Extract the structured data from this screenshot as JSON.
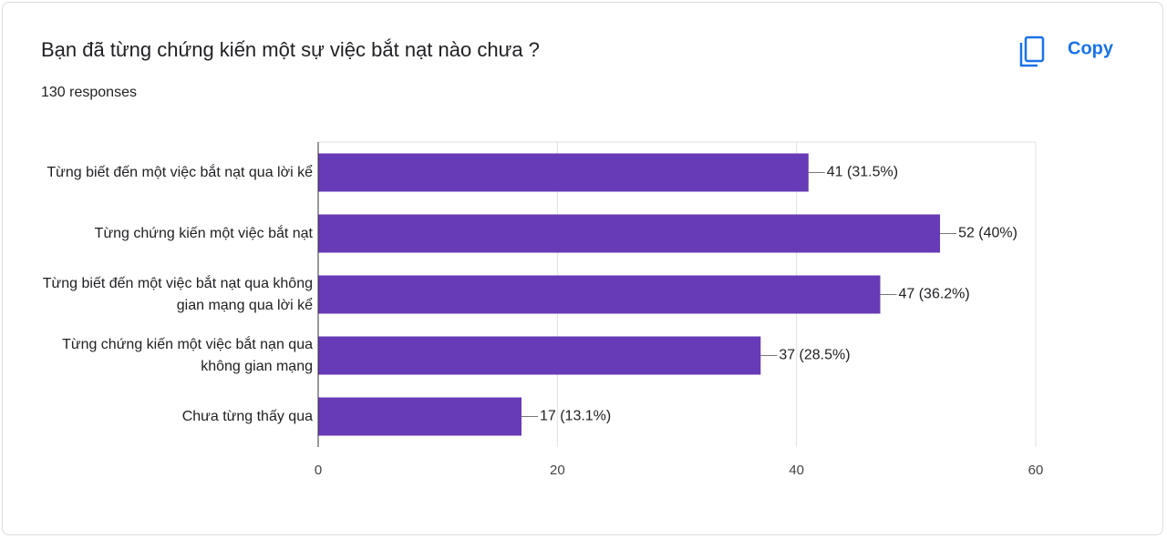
{
  "copy_button": "Copy",
  "chart_data": {
    "type": "hbar",
    "title": "Bạn đã từng chứng kiến một sự việc bắt nạt nào chưa ?",
    "subtitle": "130 responses",
    "categories": [
      "Từng biết đến một việc bắt nạt qua lời kể",
      "Từng chứng kiến một việc bắt nạt",
      "Từng biết đến một việc bắt nạt qua không gian mạng qua lời kể",
      "Từng chứng kiến một việc bắt nạn qua không gian mạng",
      "Chưa từng thấy qua"
    ],
    "values": [
      41,
      52,
      47,
      37,
      17
    ],
    "value_labels": [
      "41 (31.5%)",
      "52 (40%)",
      "47 (36.2%)",
      "37 (28.5%)",
      "17 (13.1%)"
    ],
    "color": "#673ab7",
    "xlim": [
      0,
      60
    ],
    "xticks": [
      0,
      20,
      40,
      60
    ],
    "grid": true
  }
}
